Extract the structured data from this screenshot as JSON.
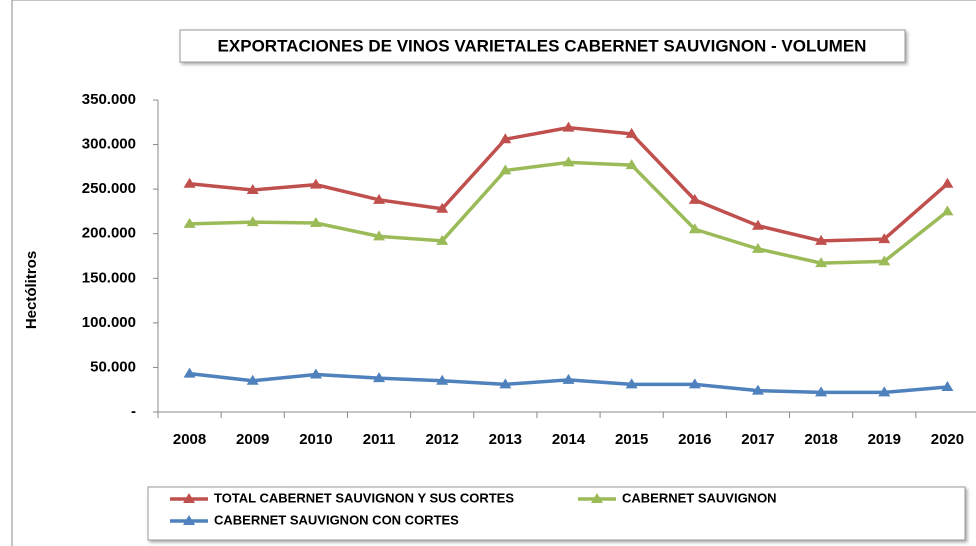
{
  "chart_data": {
    "type": "line",
    "title": "EXPORTACIONES DE VINOS VARIETALES CABERNET SAUVIGNON - VOLUMEN",
    "y_label": "Hectólitros",
    "categories": [
      "2008",
      "2009",
      "2010",
      "2011",
      "2012",
      "2013",
      "2014",
      "2015",
      "2016",
      "2017",
      "2018",
      "2019",
      "2020"
    ],
    "series": [
      {
        "name": "TOTAL CABERNET SAUVIGNON Y SUS CORTES",
        "color": "#c0504d",
        "values": [
          256000,
          249000,
          255000,
          238000,
          228000,
          306000,
          319000,
          312000,
          238000,
          209000,
          192000,
          194000,
          256000
        ]
      },
      {
        "name": "CABERNET SAUVIGNON",
        "color": "#9bbb59",
        "values": [
          211000,
          213000,
          212000,
          197000,
          192000,
          271000,
          280000,
          277000,
          205000,
          183000,
          167000,
          169000,
          225000
        ]
      },
      {
        "name": "CABERNET SAUVIGNON CON CORTES",
        "color": "#4f81bd",
        "values": [
          43000,
          35000,
          42000,
          38000,
          35000,
          31000,
          36000,
          31000,
          31000,
          24000,
          22000,
          22000,
          28000
        ]
      }
    ],
    "ylim": [
      0,
      350000
    ],
    "yticks": [
      {
        "value": 0,
        "label": "-"
      },
      {
        "value": 50000,
        "label": "50.000"
      },
      {
        "value": 100000,
        "label": "100.000"
      },
      {
        "value": 150000,
        "label": "150.000"
      },
      {
        "value": 200000,
        "label": "200.000"
      },
      {
        "value": 250000,
        "label": "250.000"
      },
      {
        "value": 300000,
        "label": "300.000"
      },
      {
        "value": 350000,
        "label": "350.000"
      }
    ],
    "grid": false
  }
}
